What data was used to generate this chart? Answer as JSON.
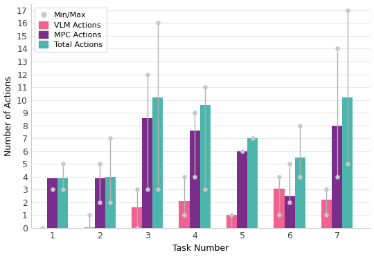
{
  "tasks": [
    1,
    2,
    3,
    4,
    5,
    6,
    7
  ],
  "vlm_actions": [
    0.0,
    0.05,
    1.6,
    2.1,
    1.0,
    3.1,
    2.2
  ],
  "mpc_actions": [
    3.9,
    3.9,
    8.6,
    7.6,
    6.0,
    2.5,
    8.0
  ],
  "total_actions": [
    3.9,
    4.0,
    10.2,
    9.6,
    7.0,
    5.5,
    10.2
  ],
  "vlm_min": [
    0.0,
    0.0,
    0.0,
    1.0,
    1.0,
    1.0,
    1.0
  ],
  "vlm_max": [
    0.0,
    1.0,
    3.0,
    4.0,
    1.0,
    4.0,
    3.0
  ],
  "mpc_min": [
    3.0,
    2.0,
    3.0,
    4.0,
    6.0,
    2.0,
    4.0
  ],
  "mpc_max": [
    3.0,
    5.0,
    12.0,
    9.0,
    6.0,
    5.0,
    14.0
  ],
  "total_min": [
    3.0,
    2.0,
    3.0,
    3.0,
    7.0,
    4.0,
    5.0
  ],
  "total_max": [
    5.0,
    7.0,
    16.0,
    11.0,
    7.0,
    8.0,
    17.0
  ],
  "scatter_vlm": [
    [
      0.0
    ],
    [
      0.0,
      1.0
    ],
    [
      0.0,
      3.0
    ],
    [
      1.0,
      4.0
    ],
    [
      1.0
    ],
    [
      1.0,
      4.0
    ],
    [
      1.0,
      3.0
    ]
  ],
  "scatter_mpc": [
    [
      3.0
    ],
    [
      2.0,
      5.0
    ],
    [
      3.0,
      12.0
    ],
    [
      4.0,
      9.0
    ],
    [
      6.0
    ],
    [
      2.0,
      5.0
    ],
    [
      4.0,
      14.0
    ]
  ],
  "scatter_total": [
    [
      3.0,
      5.0
    ],
    [
      2.0,
      7.0
    ],
    [
      3.0,
      16.0
    ],
    [
      3.0,
      11.0
    ],
    [
      7.0
    ],
    [
      4.0,
      8.0
    ],
    [
      5.0,
      17.0
    ]
  ],
  "color_vlm": "#f06292",
  "color_mpc": "#7b2d8b",
  "color_total": "#4db6ac",
  "color_scatter": "#c8c8c8",
  "bar_width": 0.22,
  "xlabel": "Task Number",
  "ylabel": "Number of Actions",
  "ylim": [
    0,
    17.5
  ],
  "yticks": [
    0,
    1,
    2,
    3,
    4,
    5,
    6,
    7,
    8,
    9,
    10,
    11,
    12,
    13,
    14,
    15,
    16,
    17
  ],
  "background_color": "#ffffff",
  "legend_labels": [
    "Min/Max",
    "VLM Actions",
    "MPC Actions",
    "Total Actions"
  ],
  "font_size": 9
}
